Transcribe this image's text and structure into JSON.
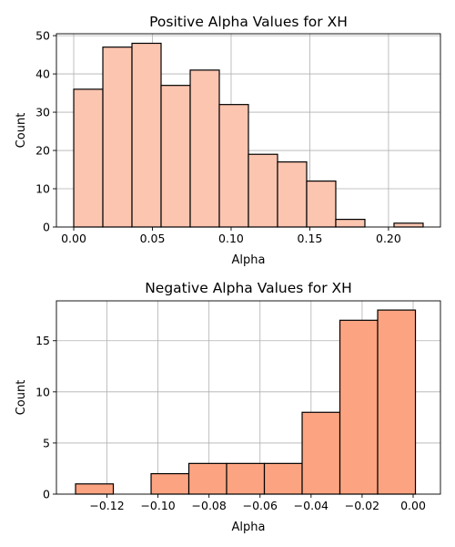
{
  "chart_data": [
    {
      "type": "bar",
      "title": "Positive Alpha Values for XH",
      "xlabel": "Alpha",
      "ylabel": "Count",
      "xlim": [
        -0.011,
        0.233
      ],
      "ylim": [
        0,
        50.5
      ],
      "grid": true,
      "bar_color": "#fcc5b0",
      "edge_color": "#000000",
      "bins": [
        {
          "start": 0.0,
          "end": 0.0185,
          "count": 36
        },
        {
          "start": 0.0185,
          "end": 0.037,
          "count": 47
        },
        {
          "start": 0.037,
          "end": 0.0555,
          "count": 48
        },
        {
          "start": 0.0555,
          "end": 0.074,
          "count": 37
        },
        {
          "start": 0.074,
          "end": 0.0925,
          "count": 41
        },
        {
          "start": 0.0925,
          "end": 0.111,
          "count": 32
        },
        {
          "start": 0.111,
          "end": 0.1295,
          "count": 19
        },
        {
          "start": 0.1295,
          "end": 0.148,
          "count": 17
        },
        {
          "start": 0.148,
          "end": 0.1665,
          "count": 12
        },
        {
          "start": 0.1665,
          "end": 0.185,
          "count": 2
        },
        {
          "start": 0.185,
          "end": 0.2035,
          "count": 0
        },
        {
          "start": 0.2035,
          "end": 0.222,
          "count": 1
        }
      ],
      "xticks": [
        0.0,
        0.05,
        0.1,
        0.15,
        0.2
      ],
      "xtick_labels": [
        "0.00",
        "0.05",
        "0.10",
        "0.15",
        "0.20"
      ],
      "yticks": [
        0,
        10,
        20,
        30,
        40,
        50
      ],
      "ytick_labels": [
        "0",
        "10",
        "20",
        "30",
        "40",
        "50"
      ]
    },
    {
      "type": "bar",
      "title": "Negative Alpha Values for XH",
      "xlabel": "Alpha",
      "ylabel": "Count",
      "xlim": [
        -0.1398,
        0.0107
      ],
      "ylim": [
        0,
        18.9
      ],
      "grid": true,
      "bar_color": "#fca482",
      "edge_color": "#000000",
      "bins": [
        {
          "start": -0.1323,
          "end": -0.1175,
          "count": 1
        },
        {
          "start": -0.1175,
          "end": -0.1027,
          "count": 0
        },
        {
          "start": -0.1027,
          "end": -0.0879,
          "count": 2
        },
        {
          "start": -0.0879,
          "end": -0.0731,
          "count": 3
        },
        {
          "start": -0.0731,
          "end": -0.0583,
          "count": 3
        },
        {
          "start": -0.0583,
          "end": -0.0435,
          "count": 3
        },
        {
          "start": -0.0435,
          "end": -0.0287,
          "count": 8
        },
        {
          "start": -0.0287,
          "end": -0.0139,
          "count": 17
        },
        {
          "start": -0.0139,
          "end": 0.0009,
          "count": 18
        }
      ],
      "xticks": [
        -0.12,
        -0.1,
        -0.08,
        -0.06,
        -0.04,
        -0.02,
        0.0
      ],
      "xtick_labels": [
        "−0.12",
        "−0.10",
        "−0.08",
        "−0.06",
        "−0.04",
        "−0.02",
        "0.00"
      ],
      "yticks": [
        0,
        5,
        10,
        15
      ],
      "ytick_labels": [
        "0",
        "5",
        "10",
        "15"
      ]
    }
  ]
}
